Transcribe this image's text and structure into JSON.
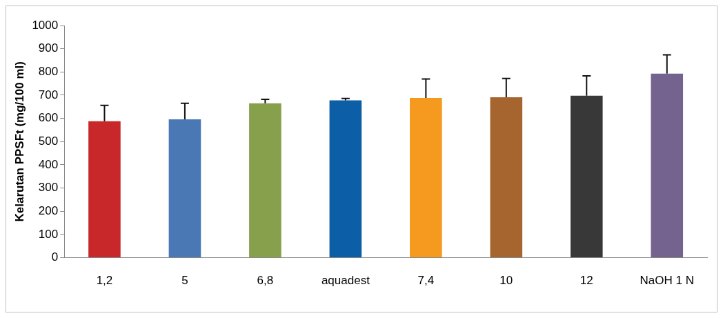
{
  "chart_data": {
    "type": "bar",
    "ylabel": "Kelarutan PPSFt (mg/100 ml)",
    "categories": [
      "1,2",
      "5",
      "6,8",
      "aquadest",
      "7,4",
      "10",
      "12",
      "NaOH 1 N"
    ],
    "values": [
      588,
      596,
      665,
      678,
      688,
      691,
      698,
      793
    ],
    "colors": [
      "#c8282a",
      "#4a78b5",
      "#86a04c",
      "#0c5fa6",
      "#f59a1e",
      "#a6642e",
      "#383838",
      "#74628f"
    ],
    "errors": [
      [
        588,
        656
      ],
      [
        596,
        665
      ],
      [
        665,
        682
      ],
      [
        678,
        686
      ],
      [
        688,
        770
      ],
      [
        691,
        772
      ],
      [
        698,
        783
      ],
      [
        793,
        874
      ]
    ],
    "ylim": [
      0,
      1000
    ],
    "yticks": [
      0,
      100,
      200,
      300,
      400,
      500,
      600,
      700,
      800,
      900,
      1000
    ],
    "grid": false,
    "legend": false
  }
}
